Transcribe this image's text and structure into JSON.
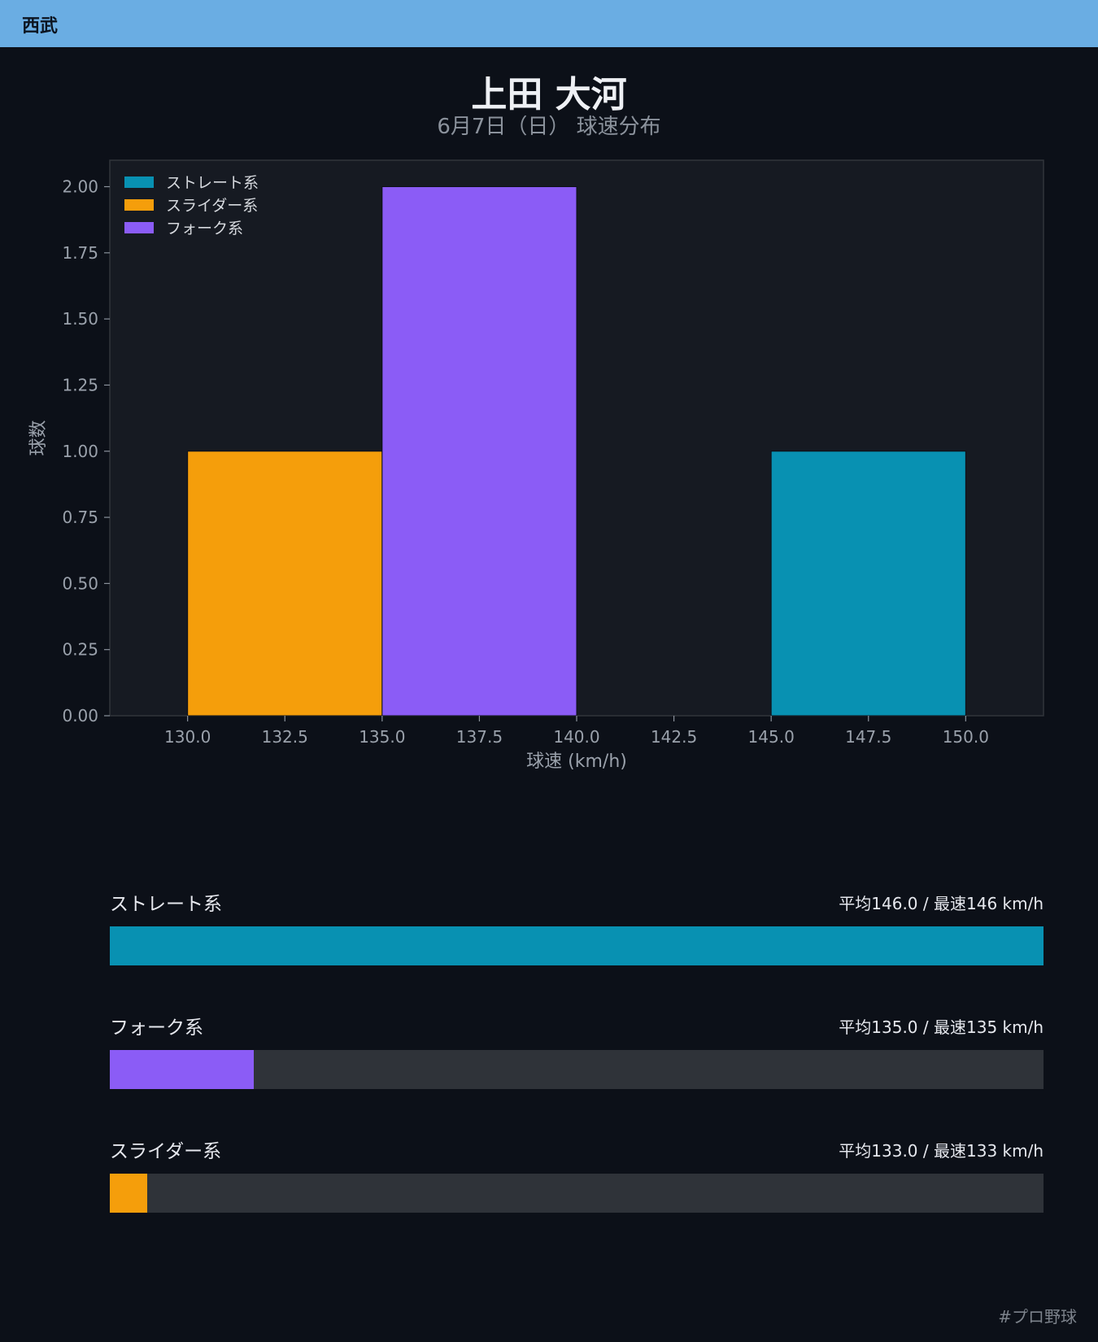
{
  "header": {
    "team": "西武"
  },
  "title": "上田 大河",
  "subtitle": "6月7日（日） 球速分布",
  "chart_data": {
    "type": "bar",
    "xlabel": "球速 (km/h)",
    "ylabel": "球数",
    "xlim": [
      128,
      152
    ],
    "ylim": [
      0,
      2.1
    ],
    "xticks": [
      130.0,
      132.5,
      135.0,
      137.5,
      140.0,
      142.5,
      145.0,
      147.5,
      150.0
    ],
    "xtick_labels": [
      "130.0",
      "132.5",
      "135.0",
      "137.5",
      "140.0",
      "142.5",
      "145.0",
      "147.5",
      "150.0"
    ],
    "yticks": [
      0,
      0.25,
      0.5,
      0.75,
      1.0,
      1.25,
      1.5,
      1.75,
      2.0
    ],
    "ytick_labels": [
      "0.00",
      "0.25",
      "0.50",
      "0.75",
      "1.00",
      "1.25",
      "1.50",
      "1.75",
      "2.00"
    ],
    "grid": false,
    "legend": "top-left",
    "series": [
      {
        "name": "ストレート系",
        "color": "#0891b2",
        "bins": [
          [
            145,
            150,
            1
          ]
        ]
      },
      {
        "name": "スライダー系",
        "color": "#f59e0b",
        "bins": [
          [
            130,
            135,
            1
          ]
        ]
      },
      {
        "name": "フォーク系",
        "color": "#8b5cf6",
        "bins": [
          [
            135,
            140,
            2
          ]
        ]
      }
    ]
  },
  "stats": [
    {
      "label": "ストレート系",
      "value": "平均146.0 / 最速146 km/h",
      "color": "#0891b2",
      "fraction": 1.0
    },
    {
      "label": "フォーク系",
      "value": "平均135.0 / 最速135 km/h",
      "color": "#8b5cf6",
      "fraction": 0.154
    },
    {
      "label": "スライダー系",
      "value": "平均133.0 / 最速133 km/h",
      "color": "#f59e0b",
      "fraction": 0.04
    }
  ],
  "footer": {
    "hashtag": "#プロ野球"
  }
}
